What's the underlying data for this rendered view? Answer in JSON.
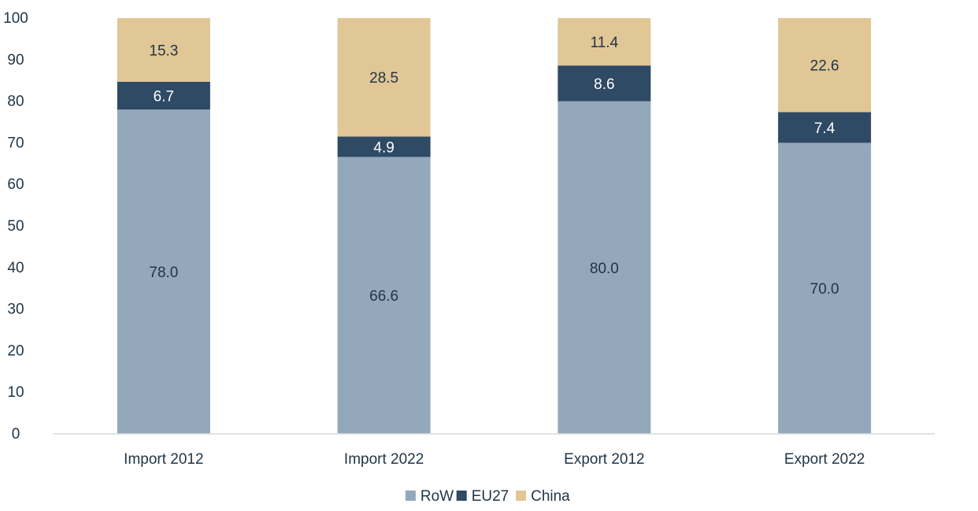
{
  "chart_data": {
    "type": "bar",
    "stacked": true,
    "categories": [
      "Import 2012",
      "Import 2022",
      "Export 2012",
      "Export 2022"
    ],
    "series": [
      {
        "name": "RoW",
        "values": [
          78.0,
          66.6,
          80.0,
          70.0
        ],
        "color": "#94A8BB",
        "label_color": "#203647"
      },
      {
        "name": "EU27",
        "values": [
          6.7,
          4.9,
          8.6,
          7.4
        ],
        "color": "#2E4A65",
        "label_color": "#FFFFFF"
      },
      {
        "name": "China",
        "values": [
          15.3,
          28.5,
          11.4,
          22.6
        ],
        "color": "#E1C696",
        "label_color": "#203647"
      }
    ],
    "data_labels": [
      [
        "78.0",
        "66.6",
        "80.0",
        "70.0"
      ],
      [
        "6.7",
        "4.9",
        "8.6",
        "7.4"
      ],
      [
        "15.3",
        "28.5",
        "11.4",
        "22.6"
      ]
    ],
    "ylim": [
      0,
      100
    ],
    "y_ticks": [
      0,
      10,
      20,
      30,
      40,
      50,
      60,
      70,
      80,
      90,
      100
    ],
    "y_tick_labels": [
      "0",
      "10",
      "20",
      "30",
      "40",
      "50",
      "60",
      "70",
      "80",
      "90",
      "100"
    ],
    "grid": false,
    "legend_position": "bottom-center",
    "title": "",
    "xlabel": "",
    "ylabel": ""
  }
}
